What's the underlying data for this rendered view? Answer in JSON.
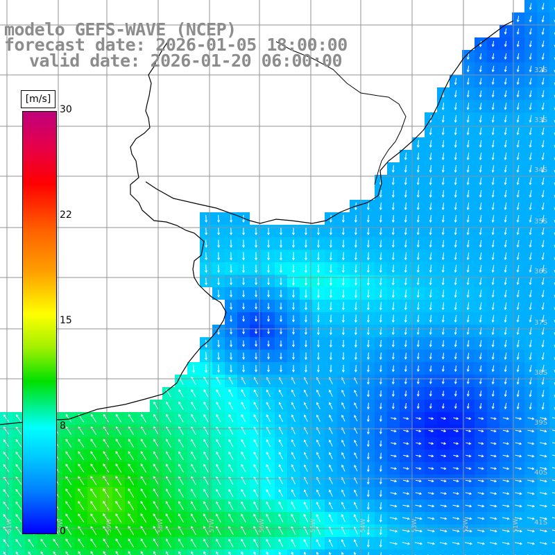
{
  "title": {
    "line1": "modelo GEFS-WAVE (NCEP)",
    "line2": "forecast date: 2026-01-05 18:00:00",
    "line3": "valid date: 2026-01-20 06:00:00"
  },
  "colorbar": {
    "unit": "[m/s]",
    "ticks": [
      "30",
      "22",
      "15",
      "8",
      "0"
    ]
  },
  "map": {
    "land_color": "#ffffff",
    "grid_color": "#909090",
    "coast_color": "#000000",
    "lat_labels": [
      "32S",
      "33S",
      "34S",
      "35S",
      "36S",
      "37S",
      "38S",
      "39S",
      "40S",
      "41S"
    ],
    "lon_labels": [
      "61W",
      "60W",
      "59W",
      "58W",
      "57W",
      "56W",
      "55W",
      "54W",
      "53W",
      "52W",
      "51W"
    ],
    "field": "wind speed with direction arrows over ocean"
  }
}
